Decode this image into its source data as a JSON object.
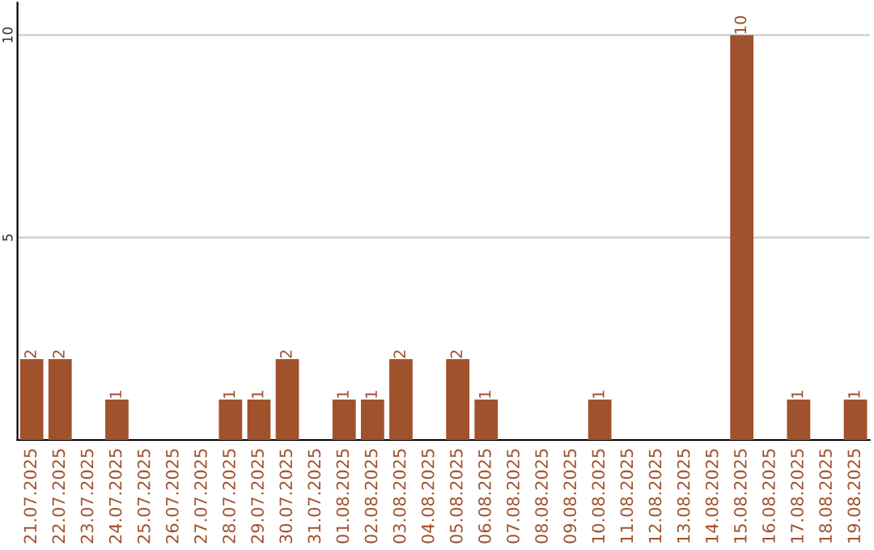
{
  "chart_data": {
    "type": "bar",
    "categories": [
      "21.07.2025",
      "22.07.2025",
      "23.07.2025",
      "24.07.2025",
      "25.07.2025",
      "26.07.2025",
      "27.07.2025",
      "28.07.2025",
      "29.07.2025",
      "30.07.2025",
      "31.07.2025",
      "01.08.2025",
      "02.08.2025",
      "03.08.2025",
      "04.08.2025",
      "05.08.2025",
      "06.08.2025",
      "07.08.2025",
      "08.08.2025",
      "09.08.2025",
      "10.08.2025",
      "11.08.2025",
      "12.08.2025",
      "13.08.2025",
      "14.08.2025",
      "15.08.2025",
      "16.08.2025",
      "17.08.2025",
      "18.08.2025",
      "19.08.2025"
    ],
    "values": [
      2,
      2,
      0,
      1,
      0,
      0,
      0,
      1,
      1,
      2,
      0,
      1,
      1,
      2,
      0,
      2,
      1,
      0,
      0,
      0,
      1,
      0,
      0,
      0,
      0,
      10,
      0,
      1,
      0,
      1
    ],
    "value_labels": [
      "2",
      "2",
      null,
      "1",
      null,
      null,
      null,
      "1",
      "1",
      "2",
      null,
      "1",
      "1",
      "2",
      null,
      "2",
      "1",
      null,
      null,
      null,
      "1",
      null,
      null,
      null,
      null,
      "10",
      null,
      "1",
      null,
      "1"
    ],
    "color": "#a0522d",
    "ylim": [
      0,
      10.8
    ],
    "yticks": [
      {
        "value": 0,
        "label": null
      },
      5,
      10
    ],
    "grid": "y",
    "legend": false
  }
}
